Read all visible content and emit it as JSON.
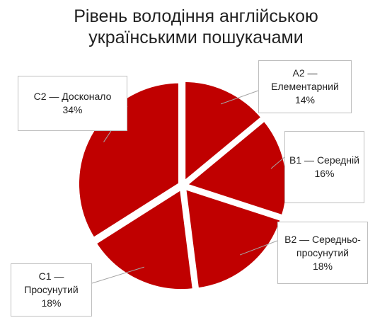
{
  "chart_data": {
    "type": "pie",
    "title": "Рівень володіння англійською українськими пошукачами",
    "categories": [
      "A2 — Елементарний",
      "B1 — Середній",
      "B2 — Середньо-просунутий",
      "C1 — Просунутий",
      "C2 — Досконало"
    ],
    "values": [
      14,
      16,
      18,
      18,
      34
    ],
    "value_labels": [
      "14%",
      "16%",
      "18%",
      "18%",
      "34%"
    ],
    "color": "#c00000"
  }
}
